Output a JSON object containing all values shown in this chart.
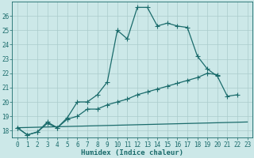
{
  "title": "",
  "xlabel": "Humidex (Indice chaleur)",
  "bg_color": "#cce8e8",
  "grid_color": "#aacccc",
  "line_color": "#1a6b6b",
  "xlim": [
    -0.5,
    23.5
  ],
  "ylim": [
    17.5,
    27.0
  ],
  "yticks": [
    18,
    19,
    20,
    21,
    22,
    23,
    24,
    25,
    26
  ],
  "xticks": [
    0,
    1,
    2,
    3,
    4,
    5,
    6,
    7,
    8,
    9,
    10,
    11,
    12,
    13,
    14,
    15,
    16,
    17,
    18,
    19,
    20,
    21,
    22,
    23
  ],
  "curve1_x": [
    0,
    1,
    2,
    3,
    4,
    5,
    6,
    7,
    8,
    9,
    10,
    11,
    12,
    13,
    14,
    15,
    16,
    17,
    18,
    19,
    20,
    21,
    22
  ],
  "curve1_y": [
    18.2,
    17.7,
    17.9,
    18.6,
    18.2,
    18.9,
    20.0,
    20.0,
    20.5,
    21.4,
    25.0,
    24.4,
    26.6,
    26.6,
    25.3,
    25.5,
    25.3,
    25.2,
    23.2,
    22.3,
    21.8,
    20.4,
    20.5
  ],
  "curve2_x": [
    0,
    1,
    2,
    3,
    4,
    5,
    6,
    7,
    8,
    9,
    10,
    11,
    12,
    13,
    14,
    15,
    16,
    17,
    18,
    19,
    20
  ],
  "curve2_y": [
    18.2,
    17.7,
    17.9,
    18.5,
    18.2,
    18.8,
    19.0,
    19.5,
    19.5,
    19.8,
    20.0,
    20.2,
    20.5,
    20.7,
    20.9,
    21.1,
    21.3,
    21.5,
    21.7,
    22.0,
    21.9
  ],
  "curve3_x": [
    0,
    23
  ],
  "curve3_y": [
    18.2,
    18.6
  ],
  "linewidth": 0.9,
  "tick_fontsize": 5.5,
  "label_fontsize": 6.5
}
